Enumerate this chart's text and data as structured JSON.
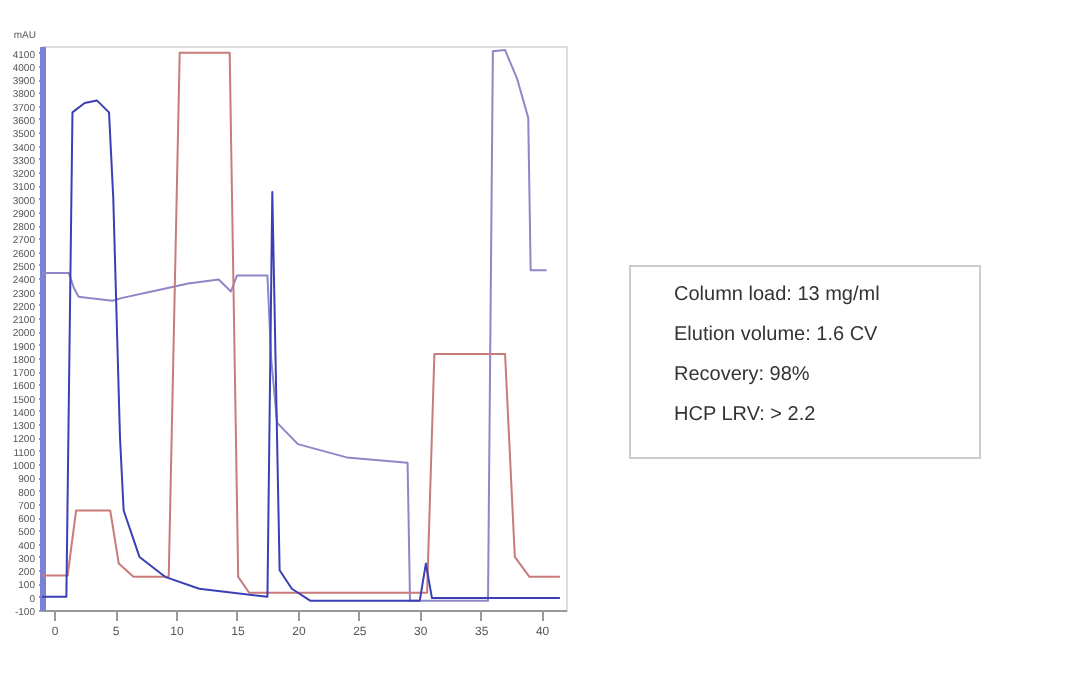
{
  "chart_data": {
    "type": "line",
    "ylabel": "mAU",
    "xlim": [
      -1,
      42
    ],
    "ylim": [
      -100,
      4150
    ],
    "xticks": [
      0,
      5,
      10,
      15,
      20,
      25,
      30,
      35,
      40
    ],
    "yticks": [
      -100,
      0,
      100,
      200,
      300,
      400,
      500,
      600,
      700,
      800,
      900,
      1000,
      1100,
      1200,
      1300,
      1400,
      1500,
      1600,
      1700,
      1800,
      1900,
      2000,
      2100,
      2200,
      2300,
      2400,
      2500,
      2600,
      2700,
      2800,
      2900,
      3000,
      3100,
      3200,
      3300,
      3400,
      3500,
      3600,
      3700,
      3800,
      3900,
      4000,
      4100
    ],
    "grid": false,
    "marker": "none",
    "line_style": "solid",
    "series": [
      {
        "color": "#8f86c8",
        "x": [
          -1,
          1.2,
          1.6,
          2.0,
          3.0,
          4.8,
          5.5,
          8,
          11,
          13.5,
          14.5,
          15,
          17.5,
          17.8,
          18.3,
          20,
          24,
          29,
          29.2,
          35.6,
          36.0,
          37.0,
          38.0,
          38.9,
          39.1,
          40.4
        ],
        "values": [
          2440,
          2440,
          2330,
          2260,
          2250,
          2230,
          2250,
          2300,
          2360,
          2390,
          2300,
          2420,
          2420,
          1800,
          1310,
          1150,
          1050,
          1010,
          -30,
          -30,
          4110,
          4120,
          3900,
          3610,
          2460,
          2460
        ]
      },
      {
        "color": "#c97a7a",
        "x": [
          -1,
          1.1,
          1.8,
          4.6,
          5.3,
          6.5,
          9.4,
          10.3,
          14.4,
          15.1,
          16,
          30.6,
          31.2,
          37.0,
          37.8,
          39,
          41.5
        ],
        "values": [
          160,
          160,
          650,
          650,
          250,
          150,
          150,
          4100,
          4100,
          150,
          30,
          30,
          1830,
          1830,
          300,
          150,
          150
        ]
      },
      {
        "color": "#3b3fb5",
        "x": [
          -1,
          1.0,
          1.5,
          2.5,
          3.5,
          4.5,
          4.85,
          5.4,
          5.7,
          7,
          9.1,
          11.9,
          17.5,
          17.9,
          18.5,
          19.5,
          21,
          30,
          30.5,
          31,
          41.5
        ],
        "values": [
          0,
          0,
          3650,
          3720,
          3740,
          3650,
          3000,
          1200,
          650,
          300,
          150,
          60,
          0,
          3050,
          200,
          60,
          -30,
          -30,
          250,
          -10,
          -10
        ]
      }
    ],
    "annotations": [
      "Column load:      13 mg/ml",
      "Elution volume: 1.6 CV",
      "Recovery:           98%",
      "HCP LRV:           > 2.2"
    ]
  }
}
